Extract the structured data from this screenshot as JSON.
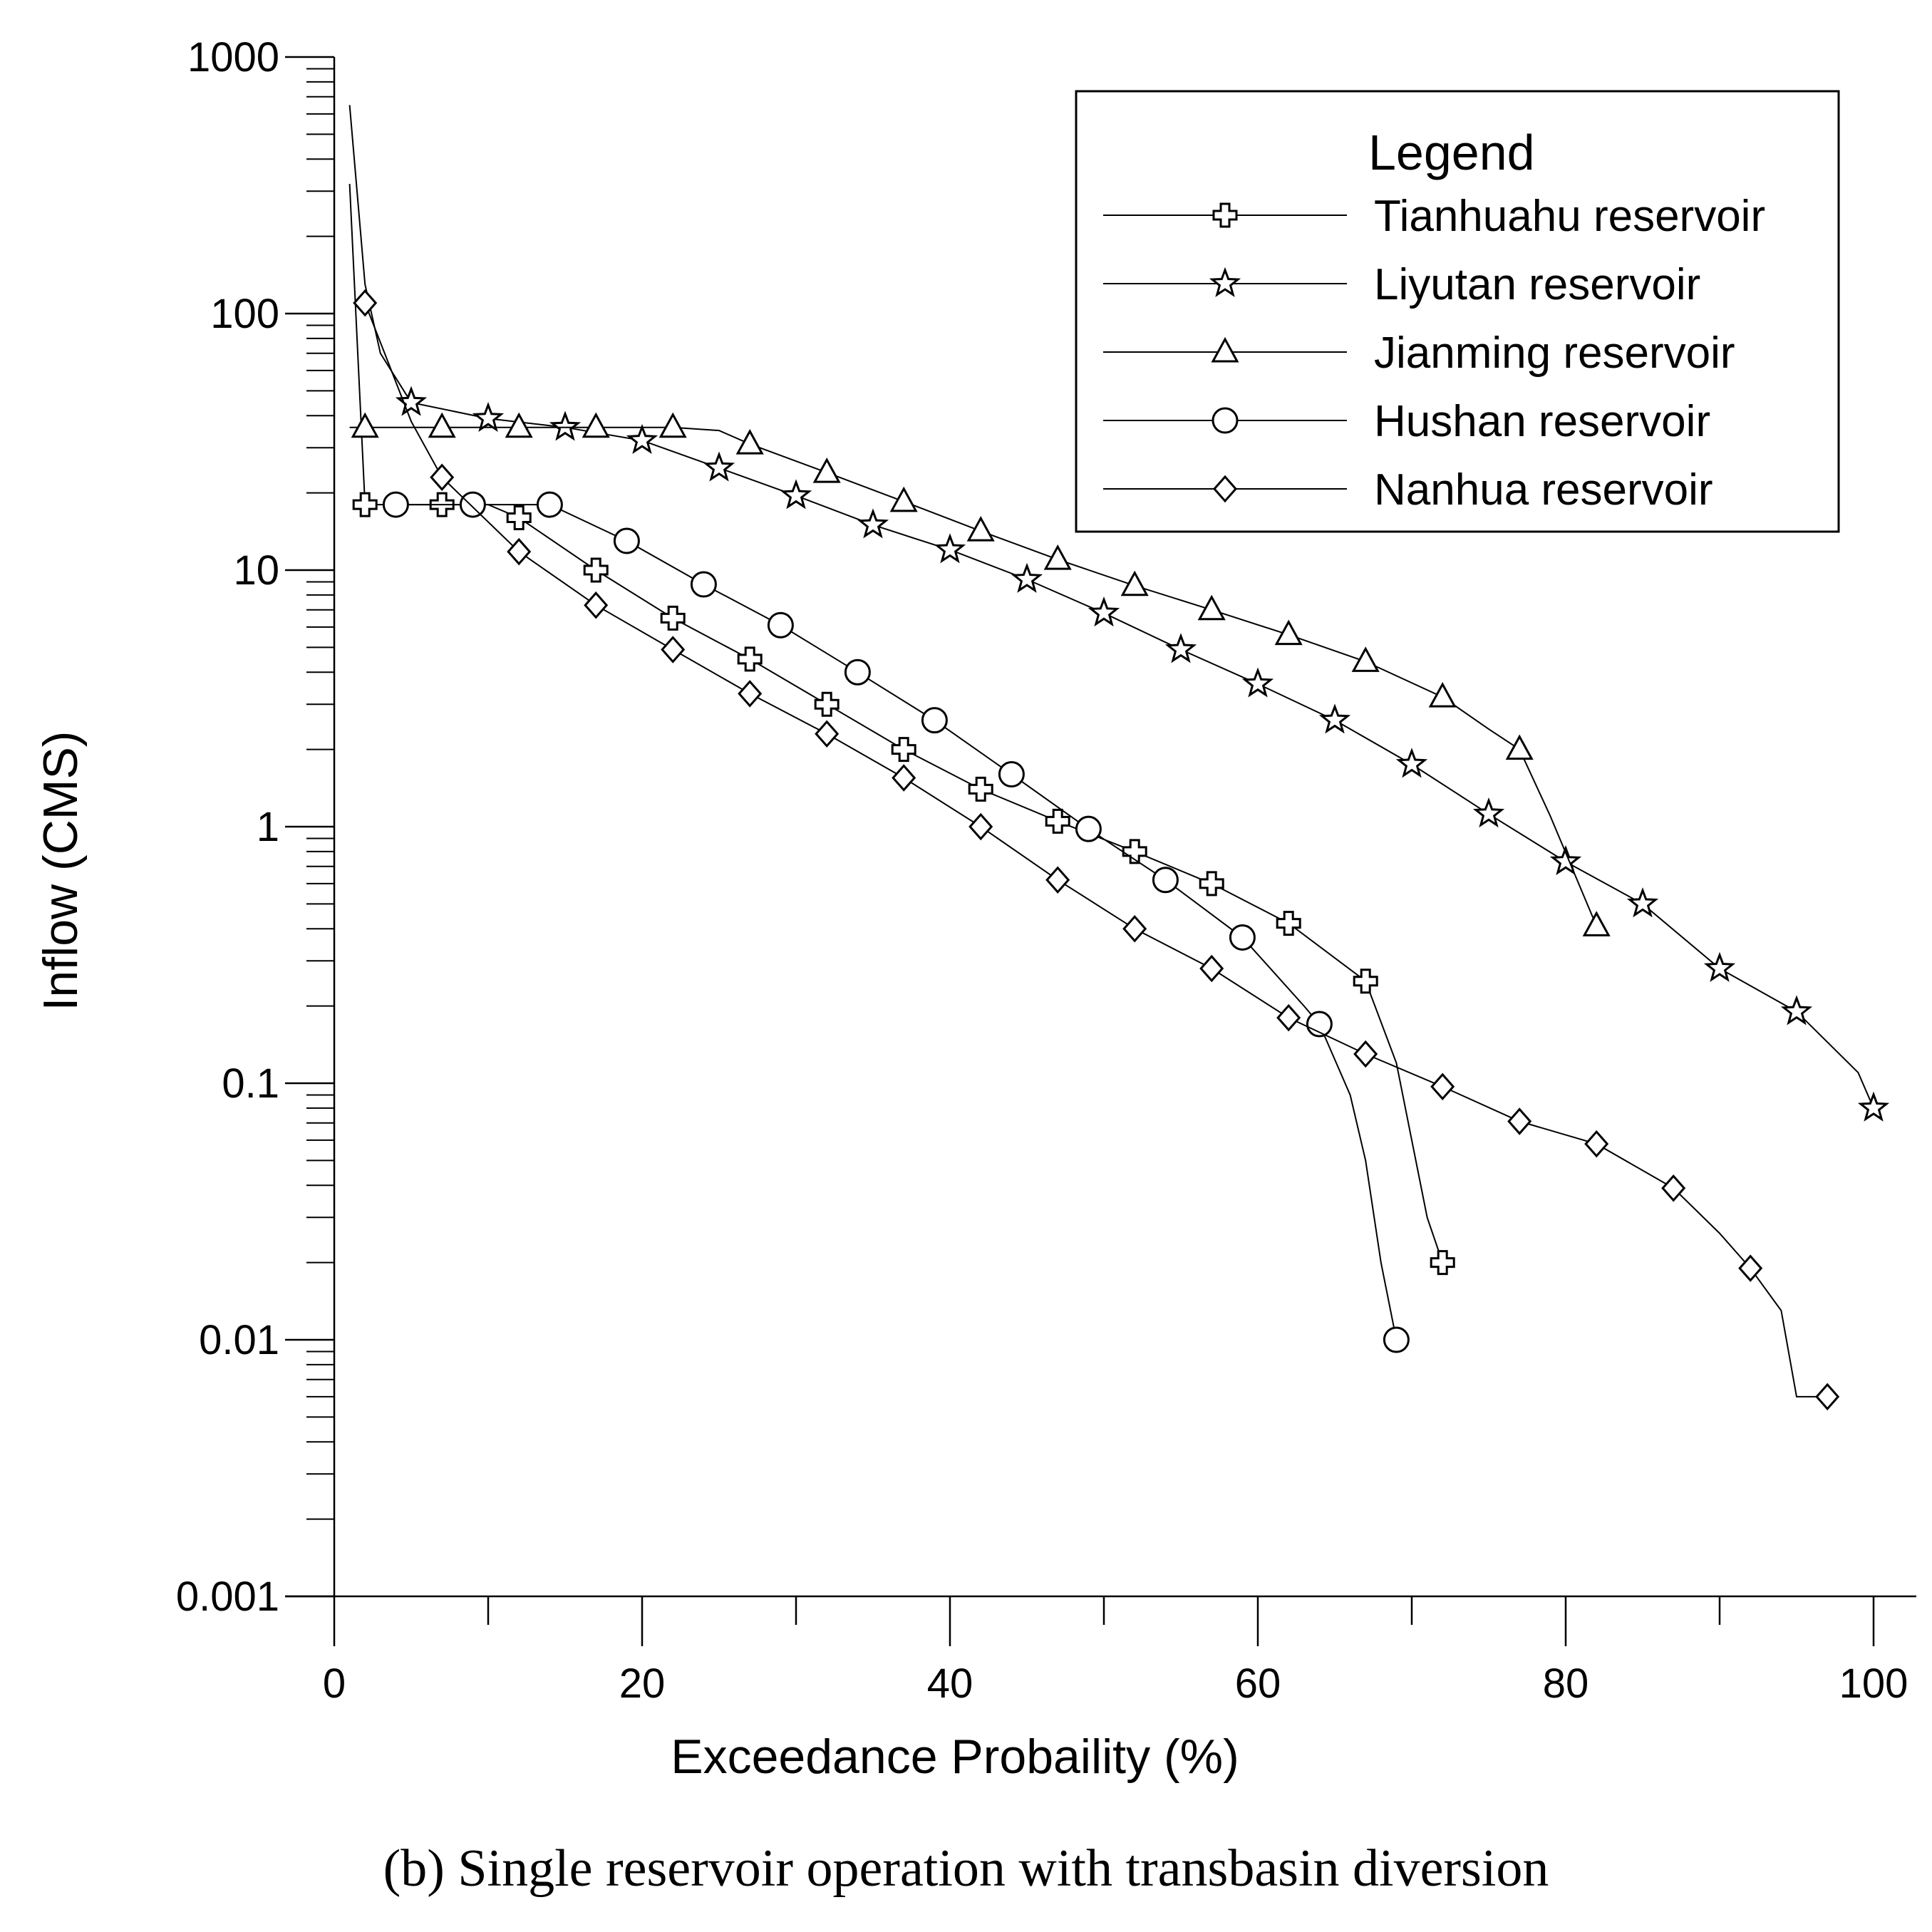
{
  "chart_data": {
    "type": "line",
    "xlabel": "Exceedance Probaility (%)",
    "ylabel": "Inflow (CMS)",
    "xlim": [
      0,
      100
    ],
    "ylim": [
      0.001,
      1000
    ],
    "yscale": "log",
    "xticks": [
      0,
      20,
      40,
      60,
      80,
      100
    ],
    "yticks": [
      0.001,
      0.01,
      0.1,
      1,
      10,
      100,
      1000
    ],
    "ytick_labels": [
      "0.001",
      "0.01",
      "0.1",
      "1",
      "10",
      "100",
      "1000"
    ],
    "grid": false,
    "legend_title": "Legend",
    "legend_position": "top-right",
    "caption": "(b) Single reservoir operation with transbasin diversion",
    "series": [
      {
        "name": "Tianhuahu reservoir",
        "marker": "cross",
        "line": [
          [
            1,
            320
          ],
          [
            2,
            18
          ],
          [
            7,
            18
          ],
          [
            10,
            18
          ],
          [
            12,
            16
          ],
          [
            17,
            10
          ],
          [
            22,
            6.5
          ],
          [
            27,
            4.5
          ],
          [
            32,
            3.0
          ],
          [
            37,
            2.0
          ],
          [
            42,
            1.4
          ],
          [
            47,
            1.05
          ],
          [
            52,
            0.8
          ],
          [
            57,
            0.6
          ],
          [
            62,
            0.42
          ],
          [
            67,
            0.25
          ],
          [
            69,
            0.12
          ],
          [
            70,
            0.06
          ],
          [
            71,
            0.03
          ],
          [
            72,
            0.02
          ]
        ],
        "markers": [
          [
            2,
            18
          ],
          [
            7,
            18
          ],
          [
            12,
            16
          ],
          [
            17,
            10
          ],
          [
            22,
            6.5
          ],
          [
            27,
            4.5
          ],
          [
            32,
            3.0
          ],
          [
            37,
            2.0
          ],
          [
            42,
            1.4
          ],
          [
            47,
            1.05
          ],
          [
            52,
            0.8
          ],
          [
            57,
            0.6
          ],
          [
            62,
            0.42
          ],
          [
            67,
            0.25
          ],
          [
            72,
            0.02
          ]
        ]
      },
      {
        "name": "Liyutan reservoir",
        "marker": "star",
        "line": [
          [
            1,
            650
          ],
          [
            2,
            130
          ],
          [
            3,
            70
          ],
          [
            5,
            45
          ],
          [
            10,
            39
          ],
          [
            15,
            36
          ],
          [
            20,
            32
          ],
          [
            25,
            25
          ],
          [
            30,
            19.5
          ],
          [
            35,
            15
          ],
          [
            40,
            12
          ],
          [
            45,
            9.2
          ],
          [
            50,
            6.8
          ],
          [
            55,
            4.9
          ],
          [
            60,
            3.6
          ],
          [
            65,
            2.6
          ],
          [
            70,
            1.75
          ],
          [
            75,
            1.12
          ],
          [
            80,
            0.73
          ],
          [
            85,
            0.5
          ],
          [
            90,
            0.28
          ],
          [
            95,
            0.19
          ],
          [
            99,
            0.11
          ],
          [
            100,
            0.08
          ]
        ],
        "markers": [
          [
            5,
            45
          ],
          [
            10,
            39
          ],
          [
            15,
            36
          ],
          [
            20,
            32
          ],
          [
            25,
            25
          ],
          [
            30,
            19.5
          ],
          [
            35,
            15
          ],
          [
            40,
            12
          ],
          [
            45,
            9.2
          ],
          [
            50,
            6.8
          ],
          [
            55,
            4.9
          ],
          [
            60,
            3.6
          ],
          [
            65,
            2.6
          ],
          [
            70,
            1.75
          ],
          [
            75,
            1.12
          ],
          [
            80,
            0.73
          ],
          [
            85,
            0.5
          ],
          [
            90,
            0.28
          ],
          [
            95,
            0.19
          ],
          [
            100,
            0.08
          ]
        ]
      },
      {
        "name": "Jianming reservoir",
        "marker": "triangle",
        "line": [
          [
            1,
            36
          ],
          [
            2,
            36
          ],
          [
            7,
            36
          ],
          [
            12,
            36
          ],
          [
            17,
            36
          ],
          [
            22,
            36
          ],
          [
            25,
            35
          ],
          [
            27,
            31
          ],
          [
            32,
            24
          ],
          [
            37,
            18.5
          ],
          [
            42,
            14.2
          ],
          [
            47,
            11
          ],
          [
            52,
            8.7
          ],
          [
            57,
            7
          ],
          [
            62,
            5.6
          ],
          [
            67,
            4.4
          ],
          [
            72,
            3.2
          ],
          [
            75,
            2.4
          ],
          [
            77,
            2.0
          ],
          [
            79,
            1.1
          ],
          [
            82,
            0.41
          ]
        ],
        "markers": [
          [
            2,
            36
          ],
          [
            7,
            36
          ],
          [
            12,
            36
          ],
          [
            17,
            36
          ],
          [
            22,
            36
          ],
          [
            27,
            31
          ],
          [
            32,
            24
          ],
          [
            37,
            18.5
          ],
          [
            42,
            14.2
          ],
          [
            47,
            11
          ],
          [
            52,
            8.7
          ],
          [
            57,
            7
          ],
          [
            62,
            5.6
          ],
          [
            67,
            4.4
          ],
          [
            72,
            3.2
          ],
          [
            77,
            2.0
          ],
          [
            82,
            0.41
          ]
        ]
      },
      {
        "name": "Hushan reservoir",
        "marker": "circle",
        "line": [
          [
            4,
            18
          ],
          [
            9,
            18
          ],
          [
            14,
            18
          ],
          [
            19,
            13
          ],
          [
            24,
            8.8
          ],
          [
            29,
            6.1
          ],
          [
            34,
            4.0
          ],
          [
            39,
            2.6
          ],
          [
            44,
            1.6
          ],
          [
            49,
            0.98
          ],
          [
            54,
            0.62
          ],
          [
            59,
            0.37
          ],
          [
            63,
            0.2
          ],
          [
            64,
            0.17
          ],
          [
            66,
            0.09
          ],
          [
            67,
            0.05
          ],
          [
            68,
            0.02
          ],
          [
            69,
            0.01
          ]
        ],
        "markers": [
          [
            4,
            18
          ],
          [
            9,
            18
          ],
          [
            14,
            18
          ],
          [
            19,
            13
          ],
          [
            24,
            8.8
          ],
          [
            29,
            6.1
          ],
          [
            34,
            4.0
          ],
          [
            39,
            2.6
          ],
          [
            44,
            1.6
          ],
          [
            49,
            0.98
          ],
          [
            54,
            0.62
          ],
          [
            59,
            0.37
          ],
          [
            64,
            0.17
          ],
          [
            69,
            0.01
          ]
        ]
      },
      {
        "name": "Nanhua reservoir",
        "marker": "diamond",
        "line": [
          [
            2,
            110
          ],
          [
            5,
            38
          ],
          [
            7,
            23
          ],
          [
            12,
            11.8
          ],
          [
            17,
            7.3
          ],
          [
            22,
            4.9
          ],
          [
            27,
            3.3
          ],
          [
            32,
            2.3
          ],
          [
            37,
            1.55
          ],
          [
            42,
            1.0
          ],
          [
            47,
            0.62
          ],
          [
            52,
            0.4
          ],
          [
            57,
            0.28
          ],
          [
            62,
            0.18
          ],
          [
            67,
            0.13
          ],
          [
            72,
            0.097
          ],
          [
            77,
            0.071
          ],
          [
            82,
            0.058
          ],
          [
            87,
            0.039
          ],
          [
            90,
            0.026
          ],
          [
            92,
            0.019
          ],
          [
            94,
            0.013
          ],
          [
            95,
            0.006
          ],
          [
            97,
            0.006
          ]
        ],
        "markers": [
          [
            2,
            110
          ],
          [
            7,
            23
          ],
          [
            12,
            11.8
          ],
          [
            17,
            7.3
          ],
          [
            22,
            4.9
          ],
          [
            27,
            3.3
          ],
          [
            32,
            2.3
          ],
          [
            37,
            1.55
          ],
          [
            42,
            1.0
          ],
          [
            47,
            0.62
          ],
          [
            52,
            0.4
          ],
          [
            57,
            0.28
          ],
          [
            62,
            0.18
          ],
          [
            67,
            0.13
          ],
          [
            72,
            0.097
          ],
          [
            77,
            0.071
          ],
          [
            82,
            0.058
          ],
          [
            87,
            0.039
          ],
          [
            92,
            0.019
          ],
          [
            97,
            0.006
          ]
        ]
      }
    ]
  }
}
